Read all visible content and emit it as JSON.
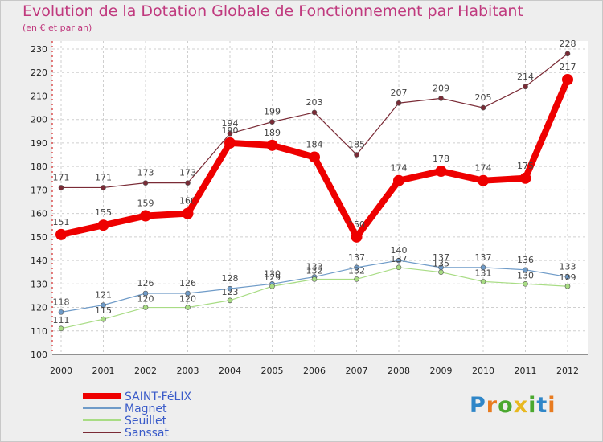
{
  "chart_data": {
    "type": "line",
    "title": "Evolution de la Dotation Globale de Fonctionnement par Habitant",
    "subtitle": "(en € et par an)",
    "xlabel": "",
    "ylabel": "",
    "categories": [
      "2000",
      "2001",
      "2002",
      "2003",
      "2004",
      "2005",
      "2006",
      "2007",
      "2008",
      "2009",
      "2010",
      "2011",
      "2012"
    ],
    "ylim": [
      100,
      230
    ],
    "yticks": [
      100,
      110,
      120,
      130,
      140,
      150,
      160,
      170,
      180,
      190,
      200,
      210,
      220,
      230
    ],
    "grid": true,
    "legend_position": "bottom-left",
    "series": [
      {
        "name": "SAINT-FéLIX",
        "color": "#ee0000",
        "emphasis": true,
        "values": [
          151,
          155,
          159,
          160,
          190,
          189,
          184,
          150,
          174,
          178,
          174,
          175,
          217
        ]
      },
      {
        "name": "Magnet",
        "color": "#6f9bc8",
        "values": [
          118,
          121,
          126,
          126,
          128,
          130,
          133,
          137,
          140,
          137,
          137,
          136,
          133
        ]
      },
      {
        "name": "Seuillet",
        "color": "#a8dc84",
        "values": [
          111,
          115,
          120,
          120,
          123,
          129,
          132,
          132,
          137,
          135,
          131,
          130,
          129
        ]
      },
      {
        "name": "Sanssat",
        "color": "#7a2b36",
        "values": [
          171,
          171,
          173,
          173,
          194,
          199,
          203,
          185,
          207,
          209,
          205,
          214,
          228
        ]
      }
    ]
  },
  "brand": {
    "letters": [
      "P",
      "r",
      "o",
      "x",
      "i",
      "t",
      "i"
    ],
    "colors": [
      "#2f86c8",
      "#e87b1f",
      "#4aa82e",
      "#e8b81f",
      "#4aa82e",
      "#2f86c8",
      "#e87b1f"
    ]
  }
}
